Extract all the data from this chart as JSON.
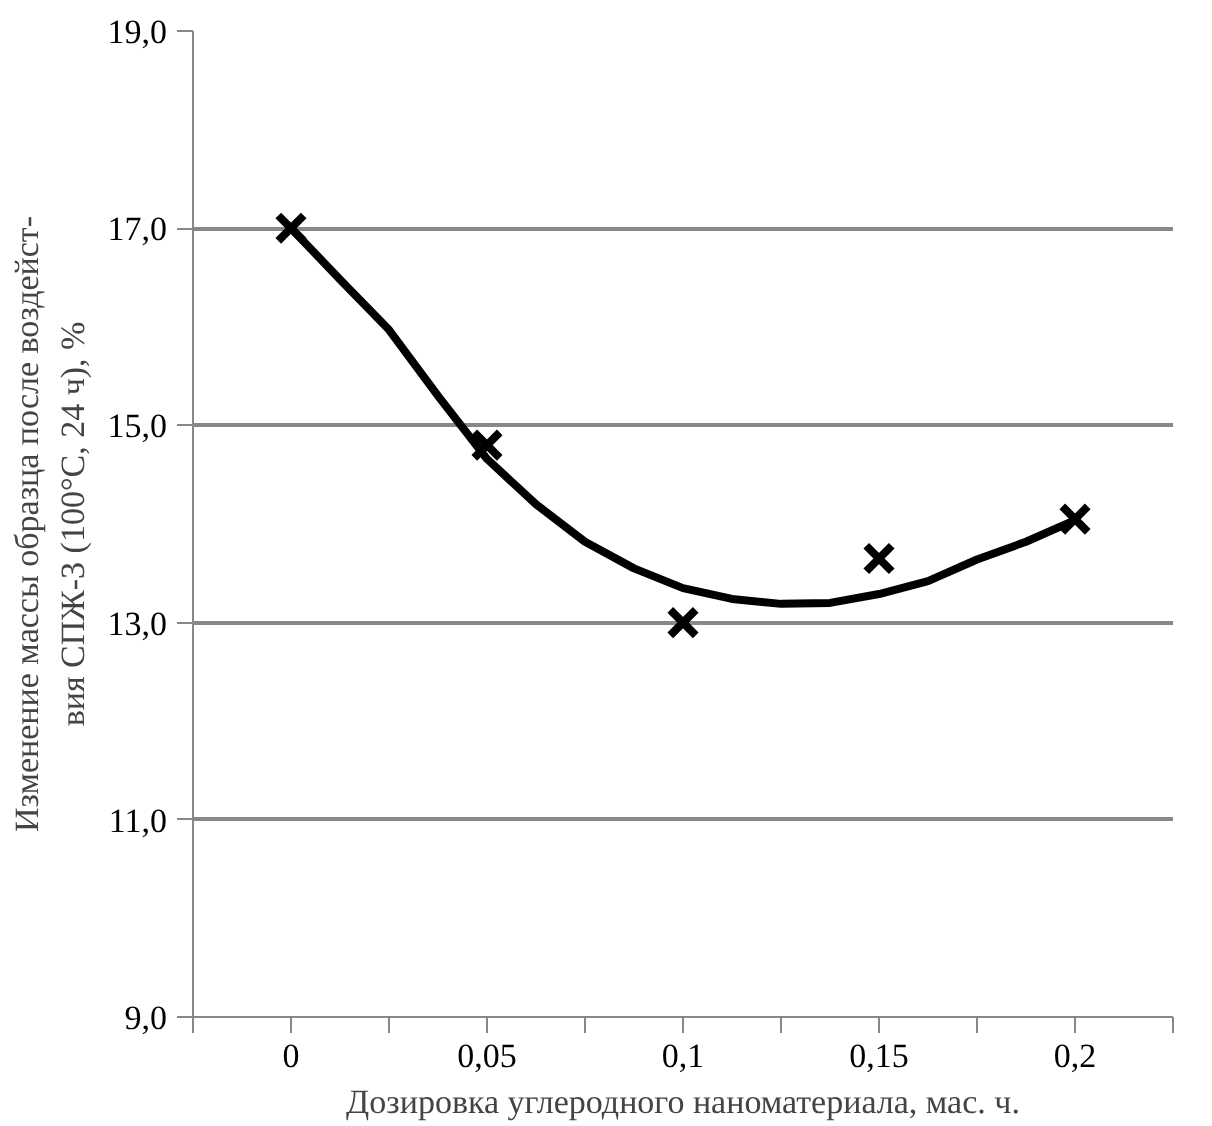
{
  "chart_data": {
    "type": "scatter",
    "xlabel": "Дозировка углеродного наноматериала, мас. ч.",
    "ylabel": "Изменение массы образца после воздейст-\nвия СПЖ-3 (100°С, 24 ч), %",
    "series": [
      {
        "color": "#000000",
        "marker": "cross",
        "x": [
          0,
          0.05,
          0.1,
          0.15,
          0.2
        ],
        "values": [
          17.0,
          14.8,
          13.0,
          13.65,
          14.05
        ]
      },
      {
        "type": "line",
        "color": "#000000",
        "marker": "none",
        "line_style": "solid",
        "x": [
          0,
          0.0125,
          0.025,
          0.0375,
          0.05,
          0.0625,
          0.075,
          0.0875,
          0.1,
          0.1125,
          0.125,
          0.1375,
          0.15,
          0.1625,
          0.175,
          0.1875,
          0.2
        ],
        "values": [
          17.0,
          16.48,
          15.97,
          15.3,
          14.66,
          14.2,
          13.82,
          13.55,
          13.35,
          13.24,
          13.19,
          13.2,
          13.29,
          13.42,
          13.64,
          13.82,
          14.04
        ]
      }
    ],
    "xlim": [
      -0.025,
      0.225
    ],
    "xticks": [
      {
        "value": -0.025,
        "label": null
      },
      {
        "value": 0,
        "label": "0"
      },
      {
        "value": 0.025,
        "label": null
      },
      {
        "value": 0.05,
        "label": "0,05"
      },
      {
        "value": 0.075,
        "label": null
      },
      {
        "value": 0.1,
        "label": "0,1"
      },
      {
        "value": 0.125,
        "label": null
      },
      {
        "value": 0.15,
        "label": "0,15"
      },
      {
        "value": 0.175,
        "label": null
      },
      {
        "value": 0.2,
        "label": "0,2"
      },
      {
        "value": 0.225,
        "label": null
      }
    ],
    "ylim": [
      9,
      19
    ],
    "yticks": [
      {
        "value": 9,
        "label": "9,0"
      },
      {
        "value": 11,
        "label": "11,0"
      },
      {
        "value": 13,
        "label": "13,0"
      },
      {
        "value": 15,
        "label": "15,0"
      },
      {
        "value": 17,
        "label": "17,0"
      },
      {
        "value": 19,
        "label": "19,0"
      }
    ],
    "grid": "y"
  }
}
